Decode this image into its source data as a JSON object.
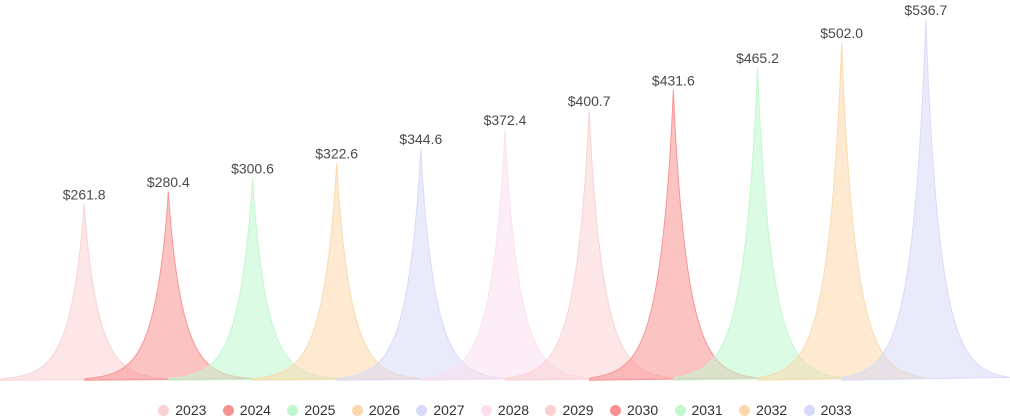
{
  "chart_data": {
    "type": "area",
    "subtype": "pictorial-peak-spikes",
    "title": "",
    "categories": [
      "2023",
      "2024",
      "2025",
      "2026",
      "2027",
      "2028",
      "2029",
      "2030",
      "2031",
      "2032",
      "2033"
    ],
    "values": [
      261.8,
      280.4,
      300.6,
      322.6,
      344.6,
      372.4,
      400.7,
      431.6,
      465.2,
      502.0,
      536.7
    ],
    "value_labels": [
      "$261.8",
      "$280.4",
      "$300.6",
      "$322.6",
      "$344.6",
      "$372.4",
      "$400.7",
      "$431.6",
      "$465.2",
      "$502.0",
      "$536.7"
    ],
    "colors": [
      "#fad2d3",
      "#fa9191",
      "#bff8cd",
      "#fbd9ac",
      "#d7daf8",
      "#fbdfee",
      "#fad2d3",
      "#fa9191",
      "#bff8cd",
      "#fbd9ac",
      "#d7daf8"
    ],
    "fill_opacity": 0.55,
    "stroke_opacity": 0.95,
    "label_color": "#4a4a4a",
    "legend_text_color": "#333333",
    "background_color": "#ffffff",
    "xlabel": "",
    "ylabel": "",
    "ylim": [
      0,
      568
    ],
    "grid": false,
    "legend_position": "bottom"
  }
}
